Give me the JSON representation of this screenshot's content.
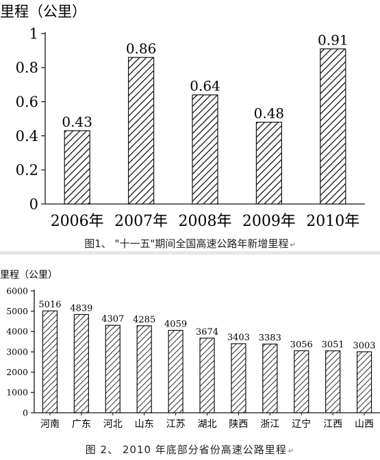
{
  "charts": [
    {
      "ylabel": "里程（公里）",
      "caption": "图1、  \"十一五\"期间全国高速公路年新增里程",
      "chart_data": {
        "type": "bar",
        "categories": [
          "2006年",
          "2007年",
          "2008年",
          "2009年",
          "2010年"
        ],
        "values": [
          0.43,
          0.86,
          0.64,
          0.48,
          0.91
        ],
        "data_labels": [
          "0.43",
          "0.86",
          "0.64",
          "0.48",
          "0.91"
        ],
        "ylabel": "里程（公里）",
        "xlabel": "",
        "ylim": [
          0,
          1
        ],
        "yticks": [
          "0",
          "0.2",
          "0.4",
          "0.6",
          "0.8",
          "1"
        ],
        "grid": false,
        "bar_fill": "diagonal-hatch"
      }
    },
    {
      "ylabel": "里程（公里）",
      "caption": "图 2、  2010 年底部分省份高速公路里程",
      "chart_data": {
        "type": "bar",
        "categories": [
          "河南",
          "广东",
          "河北",
          "山东",
          "江苏",
          "湖北",
          "陕西",
          "浙江",
          "辽宁",
          "江西",
          "山西"
        ],
        "values": [
          5016,
          4839,
          4307,
          4285,
          4059,
          3674,
          3403,
          3383,
          3056,
          3051,
          3003
        ],
        "data_labels": [
          "5016",
          "4839",
          "4307",
          "4285",
          "4059",
          "3674",
          "3403",
          "3383",
          "3056",
          "3051",
          "3003"
        ],
        "ylabel": "里程（公里）",
        "xlabel": "",
        "ylim": [
          0,
          6000
        ],
        "yticks": [
          "0",
          "1000",
          "2000",
          "3000",
          "4000",
          "5000",
          "6000"
        ],
        "grid": false,
        "bar_fill": "diagonal-hatch"
      }
    }
  ],
  "colors": {
    "bar_stroke": "#111111",
    "axis": "#111111",
    "background": "#ffffff"
  }
}
